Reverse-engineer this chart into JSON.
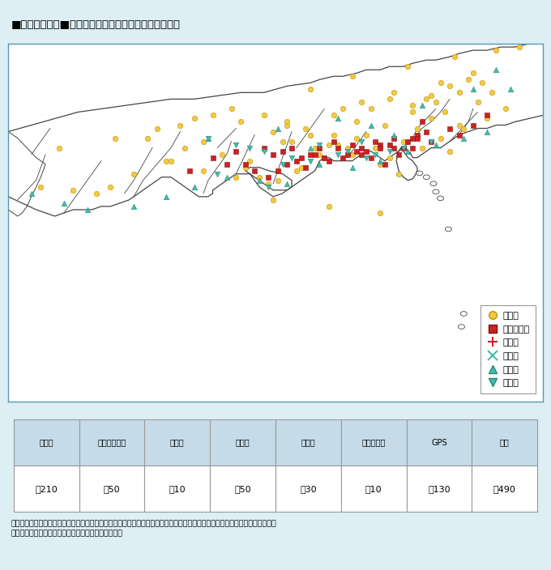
{
  "title": "■図２－４－９■　東海地域等における地震常時監視網",
  "map_bg": "#ffffff",
  "outer_bg": "#ddeef5",
  "border_color": "#5599bb",
  "table_header_bg": "#c5dce8",
  "table_border": "#999999",
  "legend_labels": [
    "地　震",
    "地殻岩石歪",
    "伸　縮",
    "傾　斜",
    "検　潮",
    "地下水"
  ],
  "table_headers": [
    "地震計",
    "地殻岩石歪計",
    "伸縮計",
    "傾斜計",
    "検潮計",
    "地下水位計",
    "GPS",
    "合計"
  ],
  "table_values": [
    "約210",
    "約50",
    "約10",
    "約50",
    "約30",
    "約10",
    "約130",
    "約490"
  ],
  "note": "注）東海地域等で発生した地震の監視は，当該地域内だけでなく当該地域外に設置されている地震計も利用しており，その数は\n　地震の規模によって異なるため概数で示している。",
  "map_xlim": [
    130.3,
    141.8
  ],
  "map_ylim": [
    27.2,
    38.2
  ],
  "seismometer_color": "#f5c842",
  "seismometer_edge": "#b8960a",
  "borehole_color": "#cc2222",
  "borehole_edge": "#881111",
  "extension_color": "#cc2222",
  "tilt_color": "#44bbaa",
  "tide_color": "#44bbaa",
  "groundwater_color": "#44bbaa",
  "coast_color": "#444444",
  "seismometer_x": [
    131.0,
    131.7,
    132.2,
    132.5,
    133.0,
    133.8,
    134.1,
    134.5,
    134.9,
    135.4,
    135.7,
    136.1,
    136.5,
    137.0,
    137.4,
    137.8,
    138.2,
    138.5,
    138.8,
    139.1,
    139.4,
    139.7,
    140.0,
    140.4,
    140.7,
    133.3,
    134.0,
    134.7,
    135.3,
    136.0,
    136.4,
    136.9,
    137.3,
    137.8,
    138.1,
    138.5,
    139.0,
    139.4,
    139.8,
    140.2,
    131.4,
    132.6,
    133.5,
    134.3,
    135.1,
    135.8,
    136.3,
    136.8,
    137.2,
    137.7,
    138.3,
    138.7,
    139.2,
    139.6,
    140.1,
    140.6,
    141.0,
    133.7,
    134.5,
    135.2,
    135.9,
    136.6,
    137.1,
    137.6,
    138.0,
    138.4,
    139.0,
    139.5,
    140.0,
    140.5,
    135.5,
    136.2,
    136.7,
    137.3,
    137.9,
    138.6,
    139.3,
    140.3,
    136.8,
    137.7,
    138.9,
    139.9,
    140.8,
    136.3,
    137.5,
    139.6,
    141.3,
    136.0,
    137.2,
    138.3,
    139.8
  ],
  "seismometer_y": [
    33.8,
    33.7,
    33.6,
    33.8,
    34.2,
    34.6,
    35.0,
    35.2,
    34.8,
    34.4,
    34.1,
    34.0,
    34.3,
    34.8,
    35.1,
    35.3,
    35.0,
    34.7,
    35.2,
    35.6,
    35.9,
    36.1,
    35.7,
    36.4,
    36.7,
    35.3,
    35.7,
    36.0,
    35.8,
    35.5,
    35.2,
    35.0,
    35.4,
    35.8,
    36.2,
    36.5,
    36.3,
    36.6,
    36.9,
    37.1,
    35.0,
    35.3,
    35.6,
    35.9,
    36.2,
    36.0,
    35.7,
    35.4,
    35.1,
    34.8,
    34.5,
    34.2,
    35.0,
    35.3,
    35.6,
    35.9,
    36.2,
    34.6,
    34.3,
    34.1,
    33.9,
    34.4,
    34.7,
    35.0,
    35.4,
    35.7,
    36.1,
    36.4,
    36.7,
    37.0,
    34.6,
    35.2,
    35.6,
    36.0,
    36.4,
    36.7,
    36.5,
    37.3,
    36.8,
    37.2,
    37.5,
    37.8,
    38.0,
    35.8,
    36.2,
    37.0,
    38.1,
    33.4,
    33.2,
    33.0,
    34.9
  ],
  "borehole_x": [
    134.7,
    135.2,
    135.8,
    136.2,
    136.6,
    137.0,
    137.3,
    137.7,
    138.0,
    138.3,
    138.6,
    138.9,
    139.1,
    135.4,
    136.0,
    136.4,
    136.8,
    137.2,
    137.6,
    137.9,
    138.2,
    138.5,
    138.8,
    139.0,
    139.3,
    136.1,
    136.5,
    136.9,
    137.4,
    137.8,
    138.1,
    138.4,
    138.7,
    139.0,
    134.2,
    135.0,
    135.6,
    136.3,
    137.1,
    137.9,
    138.6,
    139.4,
    140.0,
    139.8,
    140.3,
    140.6,
    139.2,
    135.9,
    136.7,
    137.5,
    138.3,
    139.1
  ],
  "borehole_y": [
    34.7,
    34.9,
    35.0,
    34.9,
    34.7,
    35.0,
    35.2,
    35.1,
    34.9,
    35.1,
    35.3,
    35.2,
    35.4,
    34.5,
    34.8,
    35.0,
    34.8,
    34.6,
    34.8,
    35.0,
    35.2,
    35.1,
    35.0,
    35.3,
    35.5,
    34.3,
    34.6,
    34.8,
    35.0,
    34.9,
    34.7,
    34.5,
    34.8,
    35.0,
    34.3,
    34.5,
    34.3,
    34.5,
    34.7,
    34.8,
    35.0,
    35.2,
    35.4,
    35.6,
    35.7,
    36.0,
    35.8,
    34.1,
    34.4,
    34.7,
    35.0,
    35.3
  ],
  "extension_x": [
    133.5,
    135.6,
    136.4,
    137.1,
    137.8,
    138.5,
    139.0,
    136.8
  ],
  "extension_y": [
    35.5,
    34.7,
    35.1,
    35.4,
    35.2,
    35.0,
    35.5,
    34.4
  ],
  "tilt_x": [
    134.4,
    134.9,
    135.5,
    136.1,
    136.6,
    137.1,
    137.6,
    138.1,
    138.6,
    139.1,
    139.6,
    140.1,
    134.2,
    135.3,
    136.0,
    136.5,
    137.0,
    137.5,
    138.0,
    138.5,
    139.0,
    139.5,
    140.0,
    135.8,
    136.3,
    136.8,
    137.3,
    137.8,
    138.3,
    138.8,
    139.3,
    136.4,
    137.2,
    137.9,
    138.7,
    139.5,
    135.1,
    136.9,
    138.2,
    139.8,
    140.4,
    133.9,
    135.7,
    137.4,
    139.1,
    140.6,
    141.1
  ],
  "tilt_y": [
    35.4,
    35.2,
    35.0,
    34.8,
    35.1,
    35.3,
    35.0,
    34.8,
    35.1,
    35.3,
    35.0,
    35.5,
    35.1,
    34.6,
    34.9,
    35.1,
    34.9,
    34.7,
    34.9,
    35.1,
    35.2,
    35.0,
    35.3,
    34.4,
    34.7,
    34.9,
    35.1,
    35.0,
    34.8,
    34.6,
    34.9,
    34.5,
    34.7,
    34.9,
    35.0,
    35.2,
    35.3,
    35.5,
    35.4,
    35.6,
    36.0,
    35.6,
    35.8,
    36.2,
    36.4,
    36.6,
    37.2
  ],
  "tide_x": [
    130.8,
    131.5,
    132.0,
    133.0,
    133.7,
    134.3,
    135.0,
    135.7,
    136.3,
    137.0,
    137.7,
    138.3,
    138.9,
    139.5,
    140.1,
    140.6,
    141.1,
    134.6,
    136.1,
    137.4,
    138.1,
    139.2,
    140.3,
    140.8,
    136.8,
    138.6
  ],
  "tide_y": [
    33.6,
    33.3,
    33.1,
    33.2,
    33.5,
    33.8,
    34.1,
    34.0,
    33.9,
    34.5,
    34.4,
    34.6,
    34.9,
    35.1,
    35.3,
    35.5,
    36.8,
    35.3,
    35.6,
    35.9,
    35.7,
    36.3,
    36.8,
    37.4,
    35.0,
    35.4
  ],
  "groundwater_x": [
    134.6,
    135.2,
    135.8,
    136.4,
    137.0,
    137.6,
    138.2,
    138.8,
    139.4,
    136.2,
    137.4,
    138.5,
    135.5,
    136.8,
    138.0,
    137.9,
    135.9,
    134.8
  ],
  "groundwater_y": [
    35.3,
    35.1,
    34.9,
    34.7,
    35.1,
    34.9,
    34.8,
    35.0,
    35.2,
    34.5,
    34.8,
    34.9,
    35.0,
    34.6,
    34.7,
    35.2,
    33.8,
    34.2
  ],
  "coast_south": {
    "x": [
      130.3,
      130.6,
      130.9,
      131.1,
      131.3,
      131.5,
      131.7,
      131.9,
      132.1,
      132.3,
      132.5,
      132.7,
      132.9,
      133.0,
      133.1,
      133.2,
      133.3,
      133.4,
      133.5,
      133.6,
      133.7,
      133.8,
      133.9,
      134.0,
      134.1,
      134.2,
      134.3,
      134.4,
      134.5,
      134.6,
      134.7,
      134.7,
      134.8,
      134.9,
      135.0,
      135.1,
      135.2,
      135.3,
      135.4,
      135.5,
      135.6,
      135.7,
      135.8,
      135.9,
      136.0,
      136.1,
      136.2,
      136.3,
      136.4,
      136.5,
      136.6,
      136.7,
      136.8,
      136.9,
      137.0,
      137.1,
      137.2,
      137.3,
      137.4,
      137.5,
      137.6,
      137.7,
      137.8,
      137.9,
      138.0,
      138.1,
      138.2,
      138.3,
      138.4,
      138.5,
      138.6,
      138.7,
      138.75,
      138.8,
      138.85,
      138.9,
      138.95,
      139.0,
      139.1,
      139.2,
      139.3,
      139.4,
      139.5,
      139.6,
      139.7,
      139.8,
      139.9,
      140.0,
      140.2,
      140.4,
      140.6,
      140.8,
      141.0,
      141.2,
      141.5,
      141.8
    ],
    "y": [
      33.5,
      33.3,
      33.1,
      33.0,
      32.9,
      33.0,
      33.1,
      33.1,
      33.1,
      33.2,
      33.2,
      33.3,
      33.4,
      33.5,
      33.6,
      33.7,
      33.8,
      33.9,
      34.0,
      34.1,
      34.1,
      34.1,
      34.0,
      33.9,
      33.8,
      33.7,
      33.6,
      33.5,
      33.5,
      33.5,
      33.6,
      33.7,
      33.8,
      33.9,
      34.0,
      34.1,
      34.2,
      34.2,
      34.2,
      34.2,
      34.1,
      34.0,
      33.9,
      33.8,
      33.7,
      33.7,
      33.7,
      33.7,
      33.8,
      33.9,
      34.0,
      34.1,
      34.2,
      34.3,
      34.6,
      34.7,
      34.7,
      34.6,
      34.6,
      34.6,
      34.6,
      34.6,
      34.7,
      34.8,
      34.9,
      34.9,
      34.8,
      34.7,
      34.6,
      34.7,
      34.8,
      34.9,
      34.95,
      35.0,
      35.0,
      34.9,
      34.85,
      34.7,
      34.7,
      34.8,
      34.9,
      35.0,
      35.0,
      35.0,
      35.1,
      35.2,
      35.3,
      35.4,
      35.5,
      35.6,
      35.6,
      35.7,
      35.7,
      35.8,
      35.9,
      36.0
    ]
  },
  "coast_north": {
    "x": [
      130.3,
      130.8,
      131.3,
      131.8,
      132.3,
      132.8,
      133.3,
      133.8,
      134.3,
      134.8,
      135.3,
      135.8,
      136.3,
      136.8,
      137.0,
      137.3,
      137.5,
      137.8,
      138.0,
      138.3,
      138.5,
      138.8,
      139.0,
      139.3,
      139.5,
      139.8,
      140.0,
      140.3,
      140.6,
      140.9,
      141.2,
      141.5,
      141.8
    ],
    "y": [
      35.5,
      35.7,
      35.9,
      36.1,
      36.2,
      36.3,
      36.4,
      36.5,
      36.5,
      36.6,
      36.7,
      36.7,
      36.9,
      37.0,
      37.1,
      37.2,
      37.2,
      37.3,
      37.4,
      37.4,
      37.5,
      37.5,
      37.6,
      37.7,
      37.7,
      37.8,
      37.9,
      38.0,
      38.0,
      38.1,
      38.1,
      38.2,
      38.2
    ]
  },
  "izu_peninsula": {
    "x": [
      138.75,
      138.8,
      138.9,
      139.0,
      139.05,
      139.1,
      139.1,
      139.05,
      139.0,
      138.9,
      138.8,
      138.7,
      138.65,
      138.7,
      138.75
    ],
    "y": [
      35.0,
      34.9,
      34.7,
      34.6,
      34.5,
      34.4,
      34.3,
      34.15,
      34.05,
      34.0,
      34.1,
      34.3,
      34.6,
      34.9,
      35.0
    ]
  },
  "kii_peninsula": {
    "x": [
      135.5,
      135.7,
      136.0,
      136.2,
      136.4,
      136.4,
      136.2,
      135.9,
      135.7,
      135.5,
      135.4,
      135.5
    ],
    "y": [
      34.2,
      33.8,
      33.5,
      33.6,
      33.8,
      34.0,
      34.2,
      34.3,
      34.4,
      34.4,
      34.3,
      34.2
    ]
  },
  "pref_boundaries": [
    {
      "x": [
        137.6,
        137.7,
        137.8,
        137.9,
        138.0
      ],
      "y": [
        34.7,
        34.9,
        35.1,
        35.3,
        35.5
      ]
    },
    {
      "x": [
        136.0,
        136.1,
        136.2,
        136.3,
        136.4
      ],
      "y": [
        33.9,
        34.3,
        34.7,
        35.1,
        35.5
      ]
    },
    {
      "x": [
        135.2,
        135.3,
        135.4,
        135.5,
        135.6
      ],
      "y": [
        34.2,
        34.5,
        34.8,
        35.1,
        35.4
      ]
    },
    {
      "x": [
        138.8,
        139.0,
        139.1,
        139.3,
        139.5
      ],
      "y": [
        35.0,
        35.3,
        35.6,
        35.9,
        36.2
      ]
    },
    {
      "x": [
        139.8,
        140.0,
        140.2,
        140.4
      ],
      "y": [
        35.2,
        35.5,
        35.8,
        36.1
      ]
    },
    {
      "x": [
        134.5,
        134.6,
        134.8,
        135.0,
        135.1
      ],
      "y": [
        33.6,
        34.0,
        34.4,
        34.8,
        35.2
      ]
    },
    {
      "x": [
        133.0,
        133.2,
        133.5,
        133.8,
        134.0
      ],
      "y": [
        33.5,
        34.0,
        34.5,
        35.0,
        35.5
      ]
    },
    {
      "x": [
        131.5,
        131.7,
        131.9,
        132.1,
        132.3
      ],
      "y": [
        33.0,
        33.4,
        33.8,
        34.2,
        34.6
      ]
    },
    {
      "x": [
        132.8,
        133.0,
        133.2,
        133.4
      ],
      "y": [
        33.6,
        34.0,
        34.5,
        35.0
      ]
    },
    {
      "x": [
        134.8,
        135.0,
        135.2
      ],
      "y": [
        35.0,
        35.3,
        35.6
      ]
    },
    {
      "x": [
        136.5,
        136.7,
        136.9,
        137.1
      ],
      "y": [
        35.0,
        35.4,
        35.8,
        36.2
      ]
    },
    {
      "x": [
        139.1,
        139.2,
        139.4,
        139.6,
        139.8
      ],
      "y": [
        35.4,
        35.6,
        35.8,
        36.1,
        36.5
      ]
    },
    {
      "x": [
        140.0,
        140.2,
        140.3
      ],
      "y": [
        35.4,
        35.8,
        36.2
      ]
    },
    {
      "x": [
        130.5,
        130.7,
        130.9,
        131.0,
        131.1
      ],
      "y": [
        33.4,
        33.7,
        34.0,
        34.4,
        34.8
      ]
    },
    {
      "x": [
        130.8,
        131.0,
        131.2
      ],
      "y": [
        34.8,
        35.2,
        35.6
      ]
    }
  ],
  "islands_x": [
    139.15,
    139.3,
    139.45,
    139.5,
    139.6,
    139.77,
    140.1,
    140.05,
    141.3
  ],
  "islands_y": [
    34.22,
    34.1,
    33.9,
    33.65,
    33.45,
    32.5,
    29.9,
    29.5,
    27.1
  ],
  "kyushu_x": [
    130.3,
    130.4,
    130.5,
    130.6,
    130.7,
    130.8,
    130.9,
    131.0,
    131.1,
    130.9,
    130.7,
    130.5,
    130.3
  ],
  "kyushu_y": [
    33.1,
    33.0,
    32.9,
    33.0,
    33.2,
    33.5,
    33.8,
    34.1,
    34.5,
    34.7,
    35.0,
    35.3,
    35.5
  ]
}
